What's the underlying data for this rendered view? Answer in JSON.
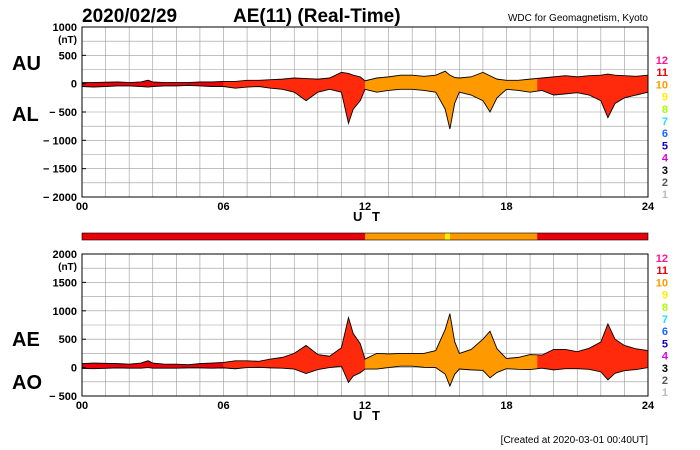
{
  "header": {
    "date": "2020/02/29",
    "title": "AE(11) (Real-Time)",
    "source": "WDC for Geomagnetism, Kyoto",
    "created": "[Created at 2020-03-01 00:40UT]"
  },
  "legend": {
    "levels": [
      "12",
      "11",
      "10",
      "9",
      "8",
      "7",
      "6",
      "5",
      "4",
      "3",
      "2",
      "1"
    ],
    "colors": [
      "#ff1493",
      "#e8000b",
      "#ff9900",
      "#ffee00",
      "#aaff00",
      "#22ddff",
      "#1a66ff",
      "#1100bb",
      "#dd00dd",
      "#000000",
      "#555555",
      "#bbbbbb"
    ]
  },
  "chart_data": [
    {
      "type": "area",
      "name": "AU/AL",
      "labels": {
        "upper": "AU",
        "lower": "AL"
      },
      "unit": "(nT)",
      "xlabel": "U T",
      "xlim": [
        0,
        24
      ],
      "xticks": [
        0,
        6,
        12,
        18,
        24
      ],
      "xtick_labels": [
        "00",
        "06",
        "12",
        "18",
        "24"
      ],
      "ylim": [
        -2000,
        1000
      ],
      "yticks": [
        1000,
        500,
        0,
        -500,
        -1000,
        -1500,
        -2000
      ],
      "ytick_labels": [
        "1000",
        "500",
        "0",
        "− 500",
        "− 1000",
        "− 1500",
        "− 2000"
      ],
      "grid": true,
      "x": [
        0,
        0.5,
        1,
        1.5,
        2,
        2.5,
        2.8,
        3,
        3.5,
        4,
        4.5,
        5,
        5.5,
        6,
        6.5,
        7,
        7.5,
        8,
        8.5,
        9,
        9.5,
        10,
        10.5,
        11,
        11.3,
        11.5,
        11.8,
        12,
        12.5,
        13,
        13.5,
        14,
        14.5,
        15,
        15.4,
        15.6,
        15.8,
        16,
        16.5,
        17,
        17.3,
        17.6,
        18,
        18.5,
        19,
        19.5,
        20,
        20.5,
        21,
        21.5,
        22,
        22.3,
        22.6,
        23,
        23.5,
        24
      ],
      "upper": [
        20,
        20,
        25,
        30,
        20,
        30,
        60,
        30,
        20,
        20,
        20,
        30,
        30,
        40,
        40,
        60,
        60,
        70,
        80,
        100,
        90,
        80,
        100,
        200,
        180,
        150,
        120,
        50,
        100,
        120,
        150,
        150,
        130,
        150,
        220,
        150,
        110,
        100,
        120,
        200,
        140,
        80,
        60,
        60,
        80,
        100,
        120,
        140,
        120,
        140,
        150,
        170,
        150,
        140,
        130,
        150
      ],
      "lower": [
        -50,
        -60,
        -50,
        -40,
        -40,
        -50,
        -60,
        -50,
        -40,
        -40,
        -30,
        -40,
        -50,
        -50,
        -80,
        -60,
        -50,
        -80,
        -100,
        -150,
        -300,
        -150,
        -100,
        -150,
        -700,
        -450,
        -300,
        -100,
        -150,
        -120,
        -100,
        -100,
        -120,
        -150,
        -450,
        -800,
        -350,
        -150,
        -200,
        -300,
        -500,
        -250,
        -100,
        -120,
        -150,
        -120,
        -200,
        -180,
        -160,
        -200,
        -300,
        -600,
        -350,
        -250,
        -200,
        -150
      ],
      "band_colors": [
        {
          "from": 0,
          "to": 6,
          "color": "#e8000b"
        },
        {
          "from": 6,
          "to": 12,
          "color": "#ff2a0c"
        },
        {
          "from": 12,
          "to": 19.3,
          "color": "#ff9900"
        },
        {
          "from": 19.3,
          "to": 24,
          "color": "#ff2a0c"
        }
      ]
    },
    {
      "type": "area",
      "name": "AE/AO",
      "labels": {
        "upper": "AE",
        "lower": "AO"
      },
      "unit": "(nT)",
      "xlabel": "U T",
      "xlim": [
        0,
        24
      ],
      "xticks": [
        0,
        6,
        12,
        18,
        24
      ],
      "xtick_labels": [
        "00",
        "06",
        "12",
        "18",
        "24"
      ],
      "ylim": [
        -500,
        2000
      ],
      "yticks": [
        2000,
        1500,
        1000,
        500,
        0,
        -500
      ],
      "ytick_labels": [
        "2000",
        "1500",
        "1000",
        "500",
        "0",
        "− 500"
      ],
      "grid": true,
      "x": [
        0,
        0.5,
        1,
        1.5,
        2,
        2.5,
        2.8,
        3,
        3.5,
        4,
        4.5,
        5,
        5.5,
        6,
        6.5,
        7,
        7.5,
        8,
        8.5,
        9,
        9.5,
        10,
        10.5,
        11,
        11.3,
        11.5,
        11.8,
        12,
        12.5,
        13,
        13.5,
        14,
        14.5,
        15,
        15.4,
        15.6,
        15.8,
        16,
        16.5,
        17,
        17.3,
        17.6,
        18,
        18.5,
        19,
        19.5,
        20,
        20.5,
        21,
        21.5,
        22,
        22.3,
        22.6,
        23,
        23.5,
        24
      ],
      "upper": [
        70,
        80,
        75,
        70,
        60,
        80,
        120,
        80,
        60,
        60,
        50,
        70,
        80,
        90,
        120,
        120,
        110,
        150,
        180,
        250,
        390,
        230,
        200,
        350,
        880,
        600,
        420,
        150,
        250,
        240,
        250,
        250,
        250,
        300,
        670,
        950,
        460,
        250,
        320,
        500,
        640,
        330,
        160,
        180,
        230,
        220,
        320,
        320,
        280,
        340,
        450,
        770,
        500,
        390,
        330,
        300
      ],
      "lower": [
        -15,
        -20,
        -12,
        -5,
        -10,
        -10,
        0,
        -10,
        -10,
        -10,
        -5,
        -5,
        -10,
        -5,
        -20,
        0,
        5,
        -5,
        -10,
        -25,
        -105,
        -35,
        0,
        25,
        -260,
        -150,
        -90,
        -25,
        -25,
        0,
        25,
        25,
        5,
        0,
        -115,
        -325,
        -120,
        -25,
        -40,
        -50,
        -180,
        -85,
        -20,
        -30,
        -35,
        -10,
        -40,
        -20,
        -20,
        -30,
        -75,
        -215,
        -100,
        -55,
        -35,
        0
      ],
      "band_colors": [
        {
          "from": 0,
          "to": 6,
          "color": "#e8000b"
        },
        {
          "from": 6,
          "to": 12,
          "color": "#ff2a0c"
        },
        {
          "from": 12,
          "to": 19.3,
          "color": "#ff9900"
        },
        {
          "from": 19.3,
          "to": 24,
          "color": "#ff2a0c"
        }
      ]
    }
  ],
  "station_bar": {
    "segments": [
      {
        "from": 0,
        "to": 12,
        "color": "#e8000b"
      },
      {
        "from": 12,
        "to": 15.4,
        "color": "#ff9900"
      },
      {
        "from": 15.4,
        "to": 15.6,
        "color": "#ffee00"
      },
      {
        "from": 15.6,
        "to": 19.3,
        "color": "#ff9900"
      },
      {
        "from": 19.3,
        "to": 24,
        "color": "#e8000b"
      }
    ]
  }
}
